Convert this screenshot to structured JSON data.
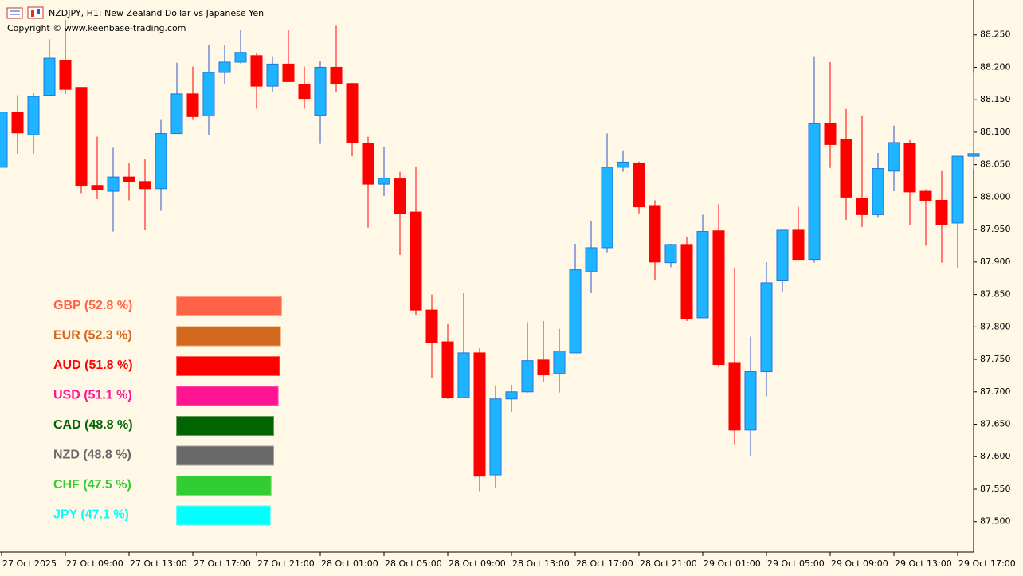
{
  "header": {
    "symbol": "NZDJPY, H1:  New Zealand Dollar vs Japanese Yen",
    "copyright": "Copyright © www.keenbase-trading.com"
  },
  "chart_data": [
    {
      "type": "candlestick",
      "categories": [
        "27 Oct 2025",
        null,
        null,
        null,
        "27 Oct 09:00",
        null,
        null,
        null,
        "27 Oct 13:00",
        null,
        null,
        null,
        "27 Oct 17:00",
        null,
        null,
        null,
        "27 Oct 21:00",
        null,
        null,
        null,
        "28 Oct 01:00",
        null,
        null,
        null,
        "28 Oct 05:00",
        null,
        null,
        null,
        "28 Oct 09:00",
        null,
        null,
        null,
        "28 Oct 13:00",
        null,
        null,
        null,
        "28 Oct 17:00",
        null,
        null,
        null,
        "28 Oct 21:00",
        null,
        null,
        null,
        "29 Oct 01:00",
        null,
        null,
        null,
        "29 Oct 05:00",
        null,
        null,
        null,
        "29 Oct 09:00",
        null,
        null,
        null,
        "29 Oct 13:00",
        null,
        null,
        null,
        "29 Oct 17:00",
        null
      ],
      "open": [
        88.046,
        88.131,
        88.096,
        88.157,
        88.211,
        88.169,
        88.018,
        88.009,
        88.031,
        88.024,
        88.013,
        88.098,
        88.159,
        88.125,
        88.192,
        88.208,
        88.218,
        88.171,
        88.205,
        88.173,
        88.126,
        88.2,
        88.175,
        88.083,
        88.02,
        88.028,
        87.977,
        87.826,
        87.777,
        87.691,
        87.76,
        87.572,
        87.689,
        87.7,
        87.749,
        87.728,
        87.76,
        87.885,
        87.922,
        88.046,
        88.052,
        87.987,
        87.899,
        87.927,
        87.814,
        87.948,
        87.744,
        87.641,
        87.731,
        87.871,
        87.949,
        87.904,
        88.113,
        88.089,
        87.998,
        87.973,
        88.04,
        88.083,
        88.009,
        87.995,
        87.96,
        88.063
      ],
      "high": [
        88.131,
        88.157,
        88.16,
        88.243,
        88.273,
        88.169,
        88.093,
        88.076,
        88.052,
        88.058,
        88.12,
        88.207,
        88.201,
        88.234,
        88.234,
        88.257,
        88.223,
        88.217,
        88.257,
        88.201,
        88.21,
        88.264,
        88.176,
        88.093,
        88.078,
        88.039,
        88.047,
        87.85,
        87.804,
        87.852,
        87.767,
        87.71,
        87.711,
        87.807,
        87.809,
        87.797,
        87.928,
        87.963,
        88.098,
        88.072,
        88.055,
        87.995,
        87.928,
        87.938,
        87.973,
        87.989,
        87.89,
        87.785,
        87.9,
        87.949,
        87.985,
        88.217,
        88.208,
        88.136,
        88.126,
        88.068,
        88.11,
        88.088,
        88.012,
        88.04,
        88.063,
        88.191
      ],
      "low": [
        88.046,
        88.067,
        88.067,
        88.157,
        88.159,
        88.006,
        87.997,
        87.947,
        87.995,
        87.949,
        87.979,
        88.098,
        88.12,
        88.095,
        88.174,
        88.206,
        88.136,
        88.162,
        88.178,
        88.136,
        88.082,
        88.162,
        88.063,
        87.953,
        88.002,
        87.911,
        87.818,
        87.722,
        87.689,
        87.691,
        87.547,
        87.551,
        87.669,
        87.699,
        87.715,
        87.699,
        87.76,
        87.852,
        87.915,
        88.039,
        87.975,
        87.872,
        87.892,
        87.809,
        87.814,
        87.738,
        87.619,
        87.601,
        87.693,
        87.854,
        87.904,
        87.899,
        88.045,
        87.965,
        87.954,
        87.968,
        88.009,
        87.957,
        87.925,
        87.899,
        87.89,
        88.043
      ],
      "close": [
        88.131,
        88.099,
        88.155,
        88.214,
        88.166,
        88.017,
        88.011,
        88.031,
        88.024,
        88.013,
        88.098,
        88.159,
        88.124,
        88.192,
        88.208,
        88.223,
        88.171,
        88.205,
        88.178,
        88.152,
        88.2,
        88.175,
        88.084,
        88.02,
        88.029,
        87.975,
        87.826,
        87.776,
        87.691,
        87.76,
        87.57,
        87.689,
        87.7,
        87.748,
        87.726,
        87.763,
        87.888,
        87.922,
        88.046,
        88.054,
        87.985,
        87.9,
        87.927,
        87.812,
        87.947,
        87.742,
        87.641,
        87.731,
        87.868,
        87.949,
        87.904,
        88.113,
        88.081,
        88.0,
        87.973,
        88.044,
        88.084,
        88.008,
        87.995,
        87.958,
        88.063,
        88.067
      ],
      "up_color": "#1eb4ff",
      "down_color": "#ff0000",
      "ylim": [
        87.453,
        88.3
      ],
      "yticks": [
        {
          "value": 88.25,
          "label": "88.250"
        },
        {
          "value": 88.2,
          "label": "88.200"
        },
        {
          "value": 88.15,
          "label": "88.150"
        },
        {
          "value": 88.1,
          "label": "88.100"
        },
        {
          "value": 88.05,
          "label": "88.050"
        },
        {
          "value": 88.0,
          "label": "88.000"
        },
        {
          "value": 87.95,
          "label": "87.950"
        },
        {
          "value": 87.9,
          "label": "87.900"
        },
        {
          "value": 87.85,
          "label": "87.850"
        },
        {
          "value": 87.8,
          "label": "87.800"
        },
        {
          "value": 87.75,
          "label": "87.750"
        },
        {
          "value": 87.7,
          "label": "87.700"
        },
        {
          "value": 87.65,
          "label": "87.650"
        },
        {
          "value": 87.6,
          "label": "87.600"
        },
        {
          "value": 87.55,
          "label": "87.550"
        },
        {
          "value": 87.5,
          "label": "87.500"
        }
      ]
    },
    {
      "type": "bar",
      "orientation": "horizontal",
      "labels": [
        "GBP (52.8 %)",
        "EUR (52.3 %)",
        "AUD (51.8 %)",
        "USD (51.1 %)",
        "CAD (48.8 %)",
        "NZD (48.8 %)",
        "CHF (47.5 %)",
        "JPY (47.1 %)"
      ],
      "values": [
        52.8,
        52.3,
        51.8,
        51.1,
        48.8,
        48.8,
        47.5,
        47.1
      ],
      "colors": [
        "#ff6347",
        "#d2691e",
        "#ff0000",
        "#ff1493",
        "#006400",
        "#696969",
        "#32cd32",
        "#00ffff"
      ]
    }
  ]
}
